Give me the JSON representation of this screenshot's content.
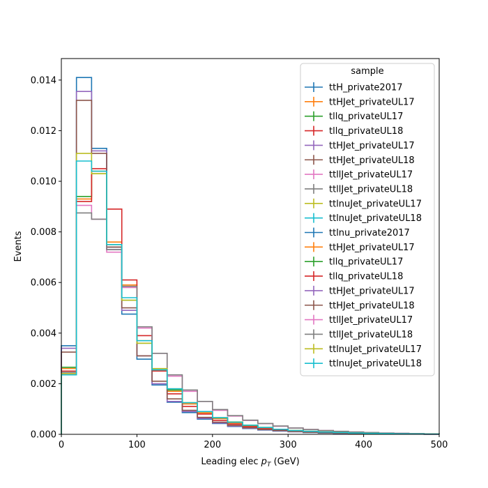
{
  "chart_data": {
    "type": "step-histogram",
    "xlabel_main": "Leading elec ",
    "xlabel_math": "p",
    "xlabel_sub": "T",
    "xlabel_unit": " (GeV)",
    "ylabel": "Events",
    "xlim": [
      0,
      500
    ],
    "ylim": [
      0,
      0.01485
    ],
    "xticks": [
      0,
      100,
      200,
      300,
      400,
      500
    ],
    "yticks": [
      0.0,
      0.002,
      0.004,
      0.006,
      0.008,
      0.01,
      0.012,
      0.014
    ],
    "ytick_labels": [
      "0.000",
      "0.002",
      "0.004",
      "0.006",
      "0.008",
      "0.010",
      "0.012",
      "0.014"
    ],
    "legend_title": "sample",
    "legend_position": "upper-right",
    "bin_edges": [
      0,
      20,
      40,
      60,
      80,
      100,
      120,
      140,
      160,
      180,
      200,
      220,
      240,
      260,
      280,
      300,
      320,
      340,
      360,
      380,
      400,
      420,
      440,
      460,
      480,
      500
    ],
    "series": [
      {
        "name": "ttH_private2017",
        "color": "#1f77b4",
        "values": [
          0.0035,
          0.0141,
          0.0113,
          0.0074,
          0.00475,
          0.00297,
          0.00195,
          0.00127,
          0.00086,
          0.0006,
          0.00043,
          0.00031,
          0.00023,
          0.00017,
          0.00013,
          0.0001,
          7e-05,
          5e-05,
          4e-05,
          3e-05,
          2e-05,
          1.5e-05,
          1e-05,
          7e-06,
          5e-06
        ]
      },
      {
        "name": "ttHJet_privateUL17",
        "color": "#ff7f0e",
        "values": [
          0.0026,
          0.0093,
          0.0104,
          0.0076,
          0.0059,
          0.0037,
          0.0025,
          0.0017,
          0.0012,
          0.00085,
          0.00062,
          0.00045,
          0.00034,
          0.00026,
          0.00019,
          0.00015,
          0.00011,
          9e-05,
          7e-05,
          5e-05,
          4e-05,
          3e-05,
          2e-05,
          1.5e-05,
          1e-05
        ]
      },
      {
        "name": "tllq_privateUL17",
        "color": "#2ca02c",
        "values": [
          0.00265,
          0.0094,
          0.0103,
          0.0075,
          0.0053,
          0.0036,
          0.00255,
          0.00175,
          0.00125,
          0.0009,
          0.00065,
          0.00048,
          0.00036,
          0.00027,
          0.0002,
          0.00015,
          0.00012,
          9e-05,
          7e-05,
          5e-05,
          4e-05,
          3e-05,
          2e-05,
          1.5e-05,
          1e-05
        ]
      },
      {
        "name": "tllq_privateUL18",
        "color": "#d62728",
        "values": [
          0.0025,
          0.0092,
          0.0105,
          0.0089,
          0.0061,
          0.0039,
          0.0025,
          0.0016,
          0.0011,
          0.0008,
          0.00055,
          0.0004,
          0.0003,
          0.00022,
          0.00016,
          0.00012,
          9e-05,
          7e-05,
          5e-05,
          4e-05,
          3e-05,
          2e-05,
          1.5e-05,
          1e-05,
          7e-06
        ]
      },
      {
        "name": "ttHJet_privateUL17",
        "color": "#9467bd",
        "values": [
          0.0034,
          0.01355,
          0.0112,
          0.0073,
          0.0049,
          0.0031,
          0.002,
          0.0013,
          0.0009,
          0.00063,
          0.00045,
          0.00033,
          0.00024,
          0.00018,
          0.00014,
          0.0001,
          8e-05,
          6e-05,
          4e-05,
          3e-05,
          2e-05,
          1.5e-05,
          1e-05,
          7e-06,
          5e-06
        ]
      },
      {
        "name": "ttHJet_privateUL18",
        "color": "#8c564b",
        "values": [
          0.00325,
          0.0132,
          0.0111,
          0.0074,
          0.005,
          0.0031,
          0.0021,
          0.0014,
          0.00095,
          0.00067,
          0.00048,
          0.00035,
          0.00026,
          0.00019,
          0.00015,
          0.00011,
          8e-05,
          6e-05,
          5e-05,
          3e-05,
          2e-05,
          1.5e-05,
          1e-05,
          7e-06,
          5e-06
        ]
      },
      {
        "name": "ttllJet_privateUL17",
        "color": "#e377c2",
        "values": [
          0.0024,
          0.00905,
          0.0085,
          0.0072,
          0.0058,
          0.0042,
          0.0032,
          0.0023,
          0.0017,
          0.0013,
          0.00095,
          0.00072,
          0.00055,
          0.00042,
          0.00032,
          0.00025,
          0.00019,
          0.00015,
          0.00011,
          9e-05,
          7e-05,
          5e-05,
          4e-05,
          3e-05,
          2e-05
        ]
      },
      {
        "name": "ttllJet_privateUL18",
        "color": "#7f7f7f",
        "values": [
          0.00245,
          0.00875,
          0.0085,
          0.0073,
          0.00585,
          0.00425,
          0.0032,
          0.00235,
          0.00175,
          0.0013,
          0.00098,
          0.00074,
          0.00056,
          0.00043,
          0.00033,
          0.00025,
          0.00019,
          0.00015,
          0.00012,
          9e-05,
          7e-05,
          5e-05,
          4e-05,
          3e-05,
          2e-05
        ]
      },
      {
        "name": "ttlnuJet_privateUL17",
        "color": "#bcbd22",
        "values": [
          0.0024,
          0.0111,
          0.0103,
          0.0075,
          0.0053,
          0.0036,
          0.0026,
          0.0018,
          0.00125,
          0.0009,
          0.00066,
          0.00049,
          0.00036,
          0.00027,
          0.0002,
          0.00015,
          0.00012,
          9e-05,
          7e-05,
          5e-05,
          4e-05,
          3e-05,
          2e-05,
          1.5e-05,
          1e-05
        ]
      },
      {
        "name": "ttlnuJet_privateUL18",
        "color": "#17becf",
        "values": [
          0.00235,
          0.0108,
          0.0104,
          0.0075,
          0.0054,
          0.0037,
          0.00255,
          0.0018,
          0.00125,
          0.0009,
          0.00066,
          0.00048,
          0.00036,
          0.00027,
          0.0002,
          0.00015,
          0.00012,
          9e-05,
          7e-05,
          5e-05,
          4e-05,
          3e-05,
          2e-05,
          1.5e-05,
          1e-05
        ]
      }
    ],
    "legend_entries": [
      {
        "label": "ttH_private2017",
        "color": "#1f77b4"
      },
      {
        "label": "ttHJet_privateUL17",
        "color": "#ff7f0e"
      },
      {
        "label": "tllq_privateUL17",
        "color": "#2ca02c"
      },
      {
        "label": "tllq_privateUL18",
        "color": "#d62728"
      },
      {
        "label": "ttHJet_privateUL17",
        "color": "#9467bd"
      },
      {
        "label": "ttHJet_privateUL18",
        "color": "#8c564b"
      },
      {
        "label": "ttllJet_privateUL17",
        "color": "#e377c2"
      },
      {
        "label": "ttllJet_privateUL18",
        "color": "#7f7f7f"
      },
      {
        "label": "ttlnuJet_privateUL17",
        "color": "#bcbd22"
      },
      {
        "label": "ttlnuJet_privateUL18",
        "color": "#17becf"
      },
      {
        "label": "ttlnu_private2017",
        "color": "#1f77b4"
      },
      {
        "label": "ttHJet_privateUL17",
        "color": "#ff7f0e"
      },
      {
        "label": "tllq_privateUL17",
        "color": "#2ca02c"
      },
      {
        "label": "tllq_privateUL18",
        "color": "#d62728"
      },
      {
        "label": "ttHJet_privateUL17",
        "color": "#9467bd"
      },
      {
        "label": "ttHJet_privateUL18",
        "color": "#8c564b"
      },
      {
        "label": "ttllJet_privateUL17",
        "color": "#e377c2"
      },
      {
        "label": "ttllJet_privateUL18",
        "color": "#7f7f7f"
      },
      {
        "label": "ttlnuJet_privateUL17",
        "color": "#bcbd22"
      },
      {
        "label": "ttlnuJet_privateUL18",
        "color": "#17becf"
      }
    ]
  }
}
